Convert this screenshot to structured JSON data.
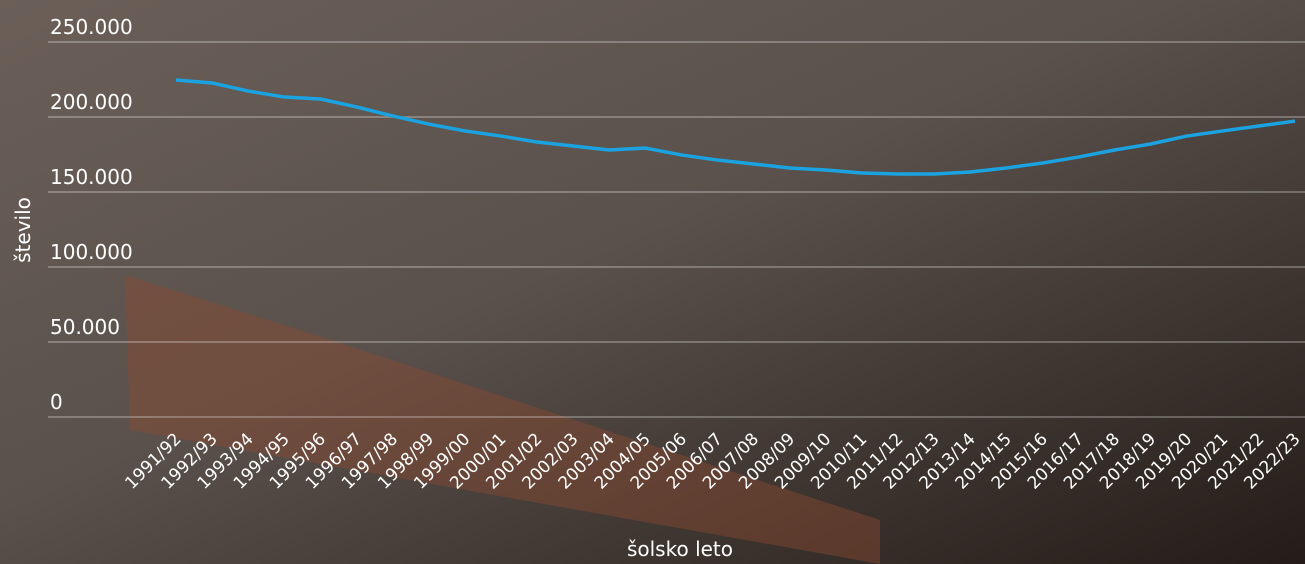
{
  "chart_data": {
    "type": "line",
    "y_label": "število",
    "x_label": "šolsko leto",
    "categories": [
      "1991/92",
      "1992/93",
      "1993/94",
      "1994/95",
      "1995/96",
      "1996/97",
      "1997/98",
      "1998/99",
      "1999/00",
      "2000/01",
      "2001/02",
      "2002/03",
      "2003/04",
      "2004/05",
      "2005/06",
      "2006/07",
      "2007/08",
      "2008/09",
      "2009/10",
      "2010/11",
      "2011/12",
      "2012/13",
      "2013/14",
      "2014/15",
      "2015/16",
      "2016/17",
      "2017/18",
      "2018/19",
      "2019/20",
      "2020/21",
      "2021/22",
      "2022/23"
    ],
    "series": [
      {
        "color": "#1aa3e0",
        "values": [
          224700,
          222700,
          217300,
          213300,
          212000,
          206700,
          200700,
          195300,
          190700,
          187300,
          183300,
          180700,
          178000,
          179300,
          174700,
          171300,
          168700,
          166000,
          164700,
          162700,
          162000,
          162000,
          163300,
          166000,
          169300,
          173300,
          178000,
          182000,
          187300,
          190700,
          194000,
          197300
        ]
      }
    ],
    "ylim": [
      0,
      250000
    ],
    "yticks": [
      0,
      {
        "value": 50000,
        "label": "50.000"
      },
      {
        "value": 100000,
        "label": "100.000"
      },
      {
        "value": 150000,
        "label": "150.000"
      },
      {
        "value": 200000,
        "label": "200.000"
      },
      {
        "value": 250000,
        "label": "250.000"
      }
    ],
    "grid": true
  }
}
